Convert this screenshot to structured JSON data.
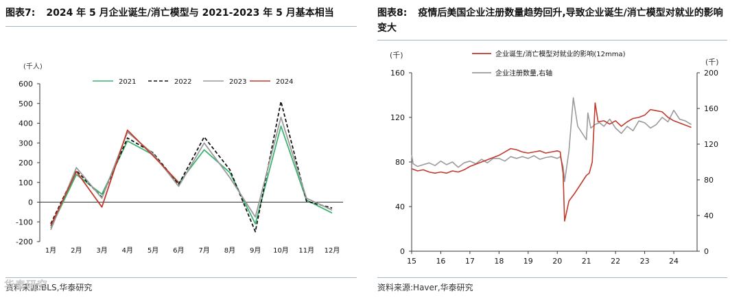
{
  "left": {
    "label": "图表7:",
    "title": "2024 年 5 月企业诞生/消亡模型与 2021-2023 年 5 月基本相当",
    "source": "资料来源:BLS,华泰研究",
    "watermark": "华泰研究"
  },
  "right": {
    "label": "图表8:",
    "title": "疫情后美国企业注册数量趋势回升,导致企业诞生/消亡模型对就业的影响变大",
    "source": "资料来源:Haver,华泰研究"
  },
  "chart_data": [
    {
      "type": "line",
      "title": "",
      "ylabel": "(千人)",
      "xlabel": "",
      "categories": [
        "1月",
        "2月",
        "3月",
        "4月",
        "5月",
        "6月",
        "7月",
        "8月",
        "9月",
        "10月",
        "11月",
        "12月"
      ],
      "ylim": [
        -200,
        600
      ],
      "yticks": [
        -200,
        -100,
        0,
        100,
        200,
        300,
        400,
        500,
        600
      ],
      "legend_position": "top",
      "series": [
        {
          "name": "2021",
          "color": "#3cb371",
          "dash": "solid",
          "values": [
            -130,
            140,
            40,
            310,
            240,
            95,
            265,
            150,
            -110,
            385,
            10,
            -55
          ]
        },
        {
          "name": "2022",
          "color": "#111111",
          "dash": "dashed",
          "values": [
            -110,
            160,
            25,
            325,
            250,
            90,
            330,
            165,
            -150,
            510,
            5,
            -30
          ]
        },
        {
          "name": "2023",
          "color": "#9a9a9a",
          "dash": "solid",
          "values": [
            -140,
            175,
            20,
            355,
            245,
            80,
            300,
            125,
            -75,
            430,
            20,
            -40
          ]
        },
        {
          "name": "2024",
          "color": "#c0392b",
          "dash": "solid",
          "values": [
            -120,
            155,
            -25,
            365,
            235,
            100,
            null,
            null,
            null,
            null,
            null,
            null
          ]
        }
      ]
    },
    {
      "type": "line",
      "title": "",
      "ylabel_left": "(千)",
      "ylabel_right": "(千)",
      "x_ticks": [
        "15",
        "16",
        "17",
        "18",
        "19",
        "20",
        "21",
        "22",
        "23",
        "24"
      ],
      "xlim": [
        2015,
        2024.8
      ],
      "ylim_left": [
        0,
        160
      ],
      "yticks_left": [
        0,
        40,
        80,
        120,
        160
      ],
      "ylim_right": [
        0,
        200
      ],
      "yticks_right": [
        0,
        40,
        80,
        120,
        160,
        200
      ],
      "legend_position": "top-left",
      "series": [
        {
          "name": "企业诞生/消亡模型对就业的影响(12mma)",
          "axis": "left",
          "color": "#c0392b",
          "points": [
            [
              2015.0,
              74
            ],
            [
              2015.2,
              72
            ],
            [
              2015.4,
              73
            ],
            [
              2015.6,
              71
            ],
            [
              2015.8,
              70
            ],
            [
              2016.0,
              71
            ],
            [
              2016.2,
              70
            ],
            [
              2016.4,
              72
            ],
            [
              2016.6,
              71
            ],
            [
              2016.8,
              73
            ],
            [
              2017.0,
              76
            ],
            [
              2017.2,
              78
            ],
            [
              2017.4,
              80
            ],
            [
              2017.6,
              82
            ],
            [
              2017.8,
              84
            ],
            [
              2018.0,
              86
            ],
            [
              2018.2,
              89
            ],
            [
              2018.4,
              92
            ],
            [
              2018.6,
              91
            ],
            [
              2018.8,
              89
            ],
            [
              2019.0,
              88
            ],
            [
              2019.2,
              89
            ],
            [
              2019.4,
              90
            ],
            [
              2019.6,
              88
            ],
            [
              2019.8,
              89
            ],
            [
              2020.0,
              90
            ],
            [
              2020.1,
              89
            ],
            [
              2020.2,
              70
            ],
            [
              2020.25,
              27
            ],
            [
              2020.4,
              45
            ],
            [
              2020.6,
              52
            ],
            [
              2020.8,
              60
            ],
            [
              2021.0,
              68
            ],
            [
              2021.1,
              70
            ],
            [
              2021.2,
              80
            ],
            [
              2021.3,
              133
            ],
            [
              2021.4,
              116
            ],
            [
              2021.6,
              117
            ],
            [
              2021.8,
              114
            ],
            [
              2022.0,
              117
            ],
            [
              2022.2,
              112
            ],
            [
              2022.4,
              116
            ],
            [
              2022.6,
              119
            ],
            [
              2022.8,
              120
            ],
            [
              2023.0,
              122
            ],
            [
              2023.2,
              127
            ],
            [
              2023.4,
              126
            ],
            [
              2023.6,
              125
            ],
            [
              2023.8,
              120
            ],
            [
              2024.0,
              117
            ],
            [
              2024.2,
              115
            ],
            [
              2024.4,
              113
            ],
            [
              2024.6,
              111
            ]
          ]
        },
        {
          "name": "企业注册数量,右轴",
          "axis": "right",
          "color": "#9a9a9a",
          "points": [
            [
              2015.0,
              108
            ],
            [
              2015.05,
              98
            ],
            [
              2015.2,
              95
            ],
            [
              2015.4,
              97
            ],
            [
              2015.6,
              99
            ],
            [
              2015.8,
              96
            ],
            [
              2016.0,
              101
            ],
            [
              2016.2,
              97
            ],
            [
              2016.4,
              100
            ],
            [
              2016.6,
              94
            ],
            [
              2016.8,
              99
            ],
            [
              2017.0,
              101
            ],
            [
              2017.2,
              98
            ],
            [
              2017.4,
              103
            ],
            [
              2017.6,
              99
            ],
            [
              2017.8,
              104
            ],
            [
              2018.0,
              104
            ],
            [
              2018.2,
              101
            ],
            [
              2018.4,
              106
            ],
            [
              2018.6,
              104
            ],
            [
              2018.8,
              106
            ],
            [
              2019.0,
              104
            ],
            [
              2019.2,
              107
            ],
            [
              2019.4,
              103
            ],
            [
              2019.6,
              105
            ],
            [
              2019.8,
              106
            ],
            [
              2020.0,
              104
            ],
            [
              2020.1,
              106
            ],
            [
              2020.2,
              95
            ],
            [
              2020.25,
              78
            ],
            [
              2020.4,
              112
            ],
            [
              2020.55,
              172
            ],
            [
              2020.7,
              140
            ],
            [
              2020.9,
              130
            ],
            [
              2021.0,
              125
            ],
            [
              2021.05,
              155
            ],
            [
              2021.15,
              138
            ],
            [
              2021.3,
              142
            ],
            [
              2021.45,
              144
            ],
            [
              2021.6,
              140
            ],
            [
              2021.8,
              148
            ],
            [
              2022.0,
              138
            ],
            [
              2022.2,
              132
            ],
            [
              2022.4,
              140
            ],
            [
              2022.6,
              135
            ],
            [
              2022.8,
              146
            ],
            [
              2023.0,
              144
            ],
            [
              2023.2,
              138
            ],
            [
              2023.4,
              142
            ],
            [
              2023.6,
              150
            ],
            [
              2023.8,
              145
            ],
            [
              2024.0,
              158
            ],
            [
              2024.2,
              148
            ],
            [
              2024.4,
              146
            ],
            [
              2024.6,
              142
            ]
          ]
        }
      ]
    }
  ]
}
